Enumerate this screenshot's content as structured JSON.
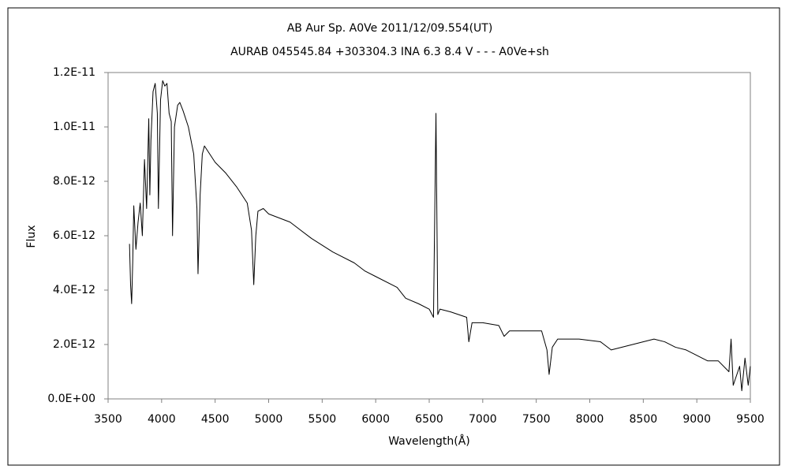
{
  "chart_data": {
    "type": "line",
    "title": "AB Aur    Sp. A0Ve    2011/12/09.554(UT)",
    "subtitle": "AURAB 045545.84 +303304.3 INA 6.3 8.4 V - - -  A0Ve+sh",
    "xlabel": "Wavelength(Å)",
    "ylabel": "Flux",
    "x": [
      3700,
      3710,
      3720,
      3730,
      3740,
      3760,
      3780,
      3800,
      3820,
      3840,
      3860,
      3880,
      3890,
      3900,
      3920,
      3940,
      3960,
      3970,
      3990,
      4010,
      4030,
      4050,
      4070,
      4090,
      4102,
      4120,
      4150,
      4170,
      4200,
      4250,
      4300,
      4330,
      4340,
      4360,
      4380,
      4400,
      4450,
      4500,
      4600,
      4700,
      4800,
      4840,
      4861,
      4880,
      4900,
      4950,
      5000,
      5200,
      5400,
      5600,
      5800,
      5900,
      6000,
      6200,
      6280,
      6400,
      6500,
      6540,
      6563,
      6580,
      6600,
      6700,
      6850,
      6870,
      6900,
      7000,
      7150,
      7200,
      7250,
      7400,
      7550,
      7600,
      7620,
      7650,
      7700,
      7900,
      8100,
      8200,
      8400,
      8600,
      8700,
      8800,
      8900,
      9000,
      9100,
      9200,
      9300,
      9320,
      9340,
      9400,
      9420,
      9450,
      9480,
      9500
    ],
    "series": [
      {
        "color": "#000000",
        "values": [
          5.7e-12,
          4.2e-12,
          3.5e-12,
          5e-12,
          7.1e-12,
          5.5e-12,
          6.5e-12,
          7.2e-12,
          6e-12,
          8.8e-12,
          7e-12,
          1.03e-11,
          7.5e-12,
          9.5e-12,
          1.13e-11,
          1.16e-11,
          1.05e-11,
          7e-12,
          1.1e-11,
          1.17e-11,
          1.15e-11,
          1.16e-11,
          1.05e-11,
          1.02e-11,
          6e-12,
          1e-11,
          1.08e-11,
          1.09e-11,
          1.06e-11,
          1e-11,
          9e-12,
          7e-12,
          4.6e-12,
          7.5e-12,
          9e-12,
          9.3e-12,
          9e-12,
          8.7e-12,
          8.3e-12,
          7.8e-12,
          7.2e-12,
          6.2e-12,
          4.2e-12,
          6e-12,
          6.9e-12,
          7e-12,
          6.8e-12,
          6.5e-12,
          5.9e-12,
          5.4e-12,
          5e-12,
          4.7e-12,
          4.5e-12,
          4.1e-12,
          3.7e-12,
          3.5e-12,
          3.3e-12,
          3e-12,
          1.05e-11,
          3.1e-12,
          3.3e-12,
          3.2e-12,
          3e-12,
          2.1e-12,
          2.8e-12,
          2.8e-12,
          2.7e-12,
          2.3e-12,
          2.5e-12,
          2.5e-12,
          2.5e-12,
          1.8e-12,
          9e-13,
          1.9e-12,
          2.2e-12,
          2.2e-12,
          2.1e-12,
          1.8e-12,
          2e-12,
          2.2e-12,
          2.1e-12,
          1.9e-12,
          1.8e-12,
          1.6e-12,
          1.4e-12,
          1.4e-12,
          1e-12,
          2.2e-12,
          5e-13,
          1.2e-12,
          3e-13,
          1.5e-12,
          5e-13,
          1.2e-12
        ]
      }
    ],
    "xlim": [
      3500,
      9500
    ],
    "xticks": [
      3500,
      4000,
      4500,
      5000,
      5500,
      6000,
      6500,
      7000,
      7500,
      8000,
      8500,
      9000,
      9500
    ],
    "ylim": [
      0,
      1.2e-11
    ],
    "yticks": [
      {
        "value": 0,
        "label": "0.0E+00"
      },
      {
        "value": 2e-12,
        "label": "2.0E-12"
      },
      {
        "value": 4e-12,
        "label": "4.0E-12"
      },
      {
        "value": 6e-12,
        "label": "6.0E-12"
      },
      {
        "value": 8e-12,
        "label": "8.0E-12"
      },
      {
        "value": 1e-11,
        "label": "1.0E-11"
      },
      {
        "value": 1.2e-11,
        "label": "1.2E-11"
      }
    ],
    "grid": false
  }
}
